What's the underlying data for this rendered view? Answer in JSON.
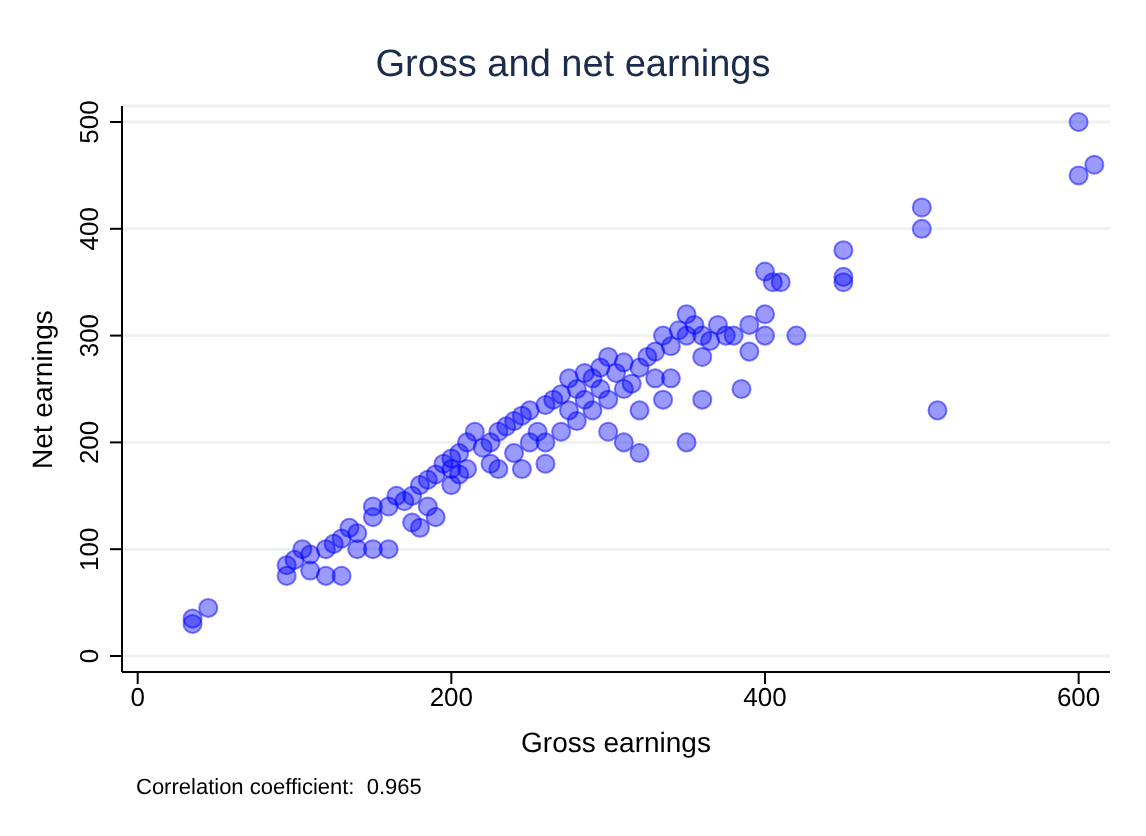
{
  "chart_data": {
    "type": "scatter",
    "title": "Gross and net earnings",
    "xlabel": "Gross earnings",
    "ylabel": "Net earnings",
    "annotations": [
      "Correlation coefficient:  0.965"
    ],
    "xlim": [
      -10,
      620
    ],
    "xticks": [
      0,
      200,
      400,
      600
    ],
    "ylim": [
      -15,
      515
    ],
    "yticks": [
      0,
      100,
      200,
      300,
      400,
      500
    ],
    "grid": "y",
    "marker": "circle",
    "series": [
      {
        "color": "#0000ff",
        "x": [
          35,
          35,
          45,
          95,
          95,
          100,
          105,
          110,
          110,
          120,
          130,
          120,
          125,
          130,
          140,
          135,
          140,
          150,
          150,
          160,
          160,
          170,
          175,
          180,
          180,
          185,
          190,
          195,
          200,
          200,
          205,
          210,
          210,
          215,
          220,
          225,
          225,
          230,
          235,
          240,
          240,
          245,
          250,
          250,
          255,
          260,
          260,
          265,
          270,
          270,
          275,
          280,
          280,
          285,
          290,
          290,
          295,
          300,
          300,
          300,
          305,
          310,
          310,
          315,
          320,
          320,
          325,
          330,
          330,
          335,
          340,
          340,
          345,
          350,
          350,
          355,
          360,
          360,
          365,
          370,
          375,
          320,
          310,
          260,
          230,
          200,
          175,
          190,
          150,
          165,
          185,
          205,
          245,
          275,
          335,
          285,
          295,
          350,
          360,
          380,
          385,
          390,
          390,
          400,
          400,
          400,
          405,
          410,
          420,
          450,
          450,
          450,
          500,
          500,
          510,
          600,
          600,
          610
        ],
        "values": [
          30,
          35,
          45,
          75,
          85,
          90,
          100,
          95,
          80,
          75,
          75,
          100,
          105,
          110,
          100,
          120,
          115,
          130,
          100,
          100,
          140,
          145,
          150,
          160,
          120,
          165,
          170,
          180,
          175,
          185,
          190,
          200,
          175,
          210,
          195,
          200,
          180,
          210,
          215,
          220,
          190,
          225,
          230,
          200,
          210,
          235,
          200,
          240,
          245,
          210,
          260,
          250,
          220,
          265,
          260,
          230,
          270,
          280,
          240,
          210,
          265,
          275,
          250,
          255,
          270,
          230,
          280,
          285,
          260,
          300,
          290,
          260,
          305,
          320,
          300,
          310,
          300,
          280,
          295,
          310,
          300,
          190,
          200,
          180,
          175,
          160,
          125,
          130,
          140,
          150,
          140,
          170,
          175,
          230,
          240,
          240,
          250,
          200,
          240,
          300,
          250,
          310,
          285,
          300,
          320,
          360,
          350,
          350,
          300,
          380,
          350,
          355,
          400,
          420,
          230,
          500,
          450,
          460
        ]
      }
    ]
  }
}
